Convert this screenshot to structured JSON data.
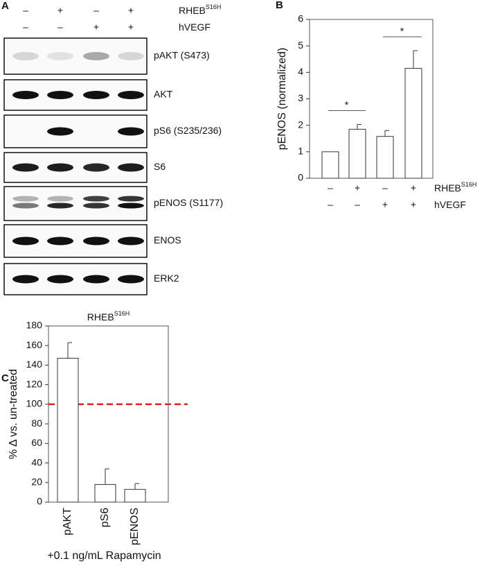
{
  "blot": {
    "label": "A",
    "conditions": [
      {
        "name": "RHEB",
        "superscript": "S16H",
        "signs": [
          "–",
          "+",
          "–",
          "+"
        ]
      },
      {
        "name": "hVEGF",
        "signs": [
          "–",
          "–",
          "+",
          "+"
        ]
      }
    ],
    "rows": [
      "pAKT (S473)",
      "AKT",
      "pS6 (S235/236)",
      "S6",
      "pENOS (S1177)",
      "ENOS",
      "ERK2"
    ]
  },
  "chart_data": [
    {
      "type": "bar",
      "label": "B",
      "ylabel": "pENOS (normalized)",
      "values": [
        1,
        1.85,
        1.58,
        4.15
      ],
      "errors": [
        0,
        0.18,
        0.22,
        0.67
      ],
      "ylim": [
        0,
        6
      ],
      "yticks": [
        0,
        1,
        2,
        3,
        4,
        5,
        6
      ],
      "color": "#ffffff",
      "conditions": [
        {
          "name": "RHEB",
          "superscript": "S16H",
          "signs": [
            "–",
            "+",
            "–",
            "+"
          ]
        },
        {
          "name": "hVEGF",
          "signs": [
            "–",
            "–",
            "+",
            "+"
          ]
        }
      ],
      "annotations": [
        "*",
        "*"
      ]
    },
    {
      "type": "bar",
      "label": "C",
      "title": "RHEB",
      "title_superscript": "S16H",
      "ylabel": "% Δ vs. un-treated",
      "xlabel": "+0.1 ng/mL Rapamycin",
      "categories": [
        "pAKT",
        "pS6",
        "pENOS"
      ],
      "values": [
        147,
        18,
        13
      ],
      "errors": [
        16,
        16,
        6
      ],
      "ylim": [
        0,
        180
      ],
      "yticks": [
        0,
        20,
        40,
        60,
        80,
        100,
        120,
        140,
        160,
        180
      ],
      "color": "#ffffff",
      "reference_line": {
        "value": 100,
        "color": "#e02020"
      }
    }
  ]
}
